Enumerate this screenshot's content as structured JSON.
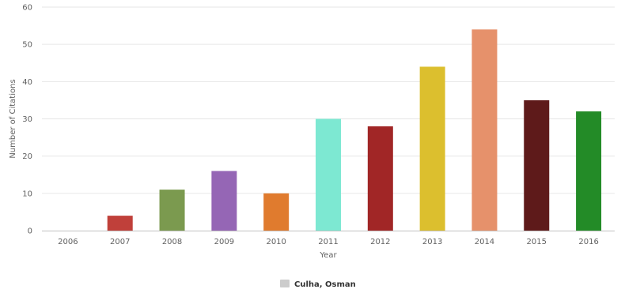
{
  "chart_data": {
    "type": "bar",
    "title": "",
    "xlabel": "Year",
    "ylabel": "Number of Citations",
    "categories": [
      "2006",
      "2007",
      "2008",
      "2009",
      "2010",
      "2011",
      "2012",
      "2013",
      "2014",
      "2015",
      "2016"
    ],
    "values": [
      0,
      4,
      11,
      16,
      10,
      30,
      28,
      44,
      54,
      35,
      32
    ],
    "bar_colors": [
      "#c8c8c8",
      "#c0403a",
      "#7b9a4f",
      "#9566b5",
      "#e07b2e",
      "#7de8d2",
      "#a12626",
      "#dcbf2e",
      "#e6916b",
      "#5e1a1a",
      "#238b27"
    ],
    "ylim": [
      0,
      60
    ],
    "yticks": [
      0,
      10,
      20,
      30,
      40,
      50,
      60
    ],
    "grid": true,
    "legend": {
      "placement": "bottom-center",
      "entries": [
        {
          "name": "Culha, Osman",
          "color": "#cccccc"
        }
      ]
    }
  }
}
